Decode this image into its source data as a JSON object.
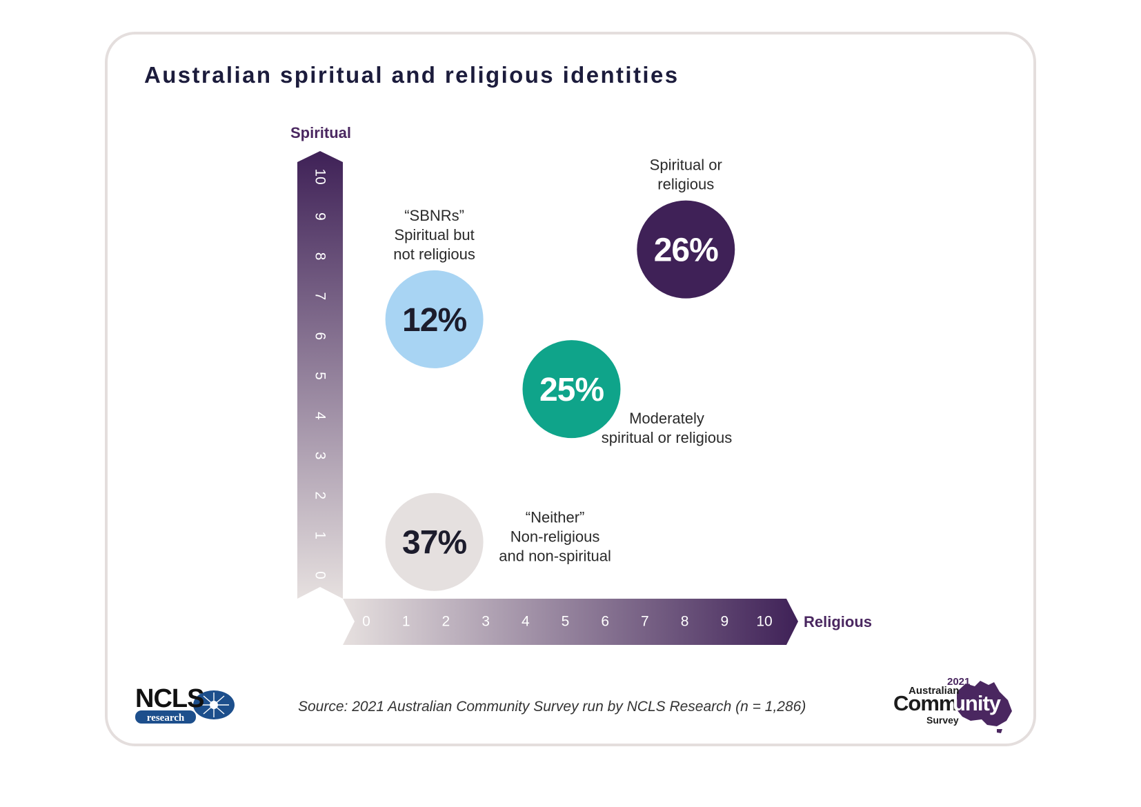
{
  "title": "Australian spiritual and religious identities",
  "source": "Source: 2021 Australian Community Survey run by NCLS Research (n = 1,286)",
  "colors": {
    "axis_dark": "#3f2157",
    "axis_light": "#e6e0df",
    "sbnr": "#a8d4f3",
    "moderate": "#0fa48a",
    "spiritual_religious": "#3f2157",
    "neither": "#e5e0df"
  },
  "logos": {
    "ncls_top": "NCLS",
    "ncls_bottom": "research",
    "acs_year": "2021",
    "acs_line1": "Australian",
    "acs_comm": "Comm",
    "acs_unity": "unity",
    "acs_line3": "Survey"
  },
  "chart_data": {
    "type": "scatter",
    "title": "Australian spiritual and religious identities",
    "xlabel": "Religious",
    "ylabel": "Spiritual",
    "xlim": [
      0,
      10
    ],
    "ylim": [
      0,
      10
    ],
    "xticks": [
      "0",
      "1",
      "2",
      "3",
      "4",
      "5",
      "6",
      "7",
      "8",
      "9",
      "10"
    ],
    "yticks": [
      "0",
      "1",
      "2",
      "3",
      "4",
      "5",
      "6",
      "7",
      "8",
      "9",
      "10"
    ],
    "grid": false,
    "points": [
      {
        "id": "sbnr",
        "value": 12,
        "label": "12%",
        "lines": [
          "“SBNRs”",
          "Spiritual but",
          "not religious"
        ],
        "x": 2,
        "y": 6.4,
        "color": "#a8d4f3",
        "text_color": "#1c1c2c"
      },
      {
        "id": "spiritual-or-religious",
        "value": 26,
        "label": "26%",
        "lines": [
          "Spiritual or",
          "religious"
        ],
        "x": 7.5,
        "y": 8.0,
        "color": "#3f2157",
        "text_color": "#ffffff"
      },
      {
        "id": "moderately",
        "value": 25,
        "label": "25%",
        "lines": [
          "Moderately",
          "spiritual or religious"
        ],
        "x": 5.0,
        "y": 4.8,
        "color": "#0fa48a",
        "text_color": "#ffffff"
      },
      {
        "id": "neither",
        "value": 37,
        "label": "37%",
        "lines": [
          "“Neither”",
          "Non-religious",
          "and non-spiritual"
        ],
        "x": 2,
        "y": 1.3,
        "color": "#e5e0df",
        "text_color": "#1c1c2c"
      }
    ]
  }
}
